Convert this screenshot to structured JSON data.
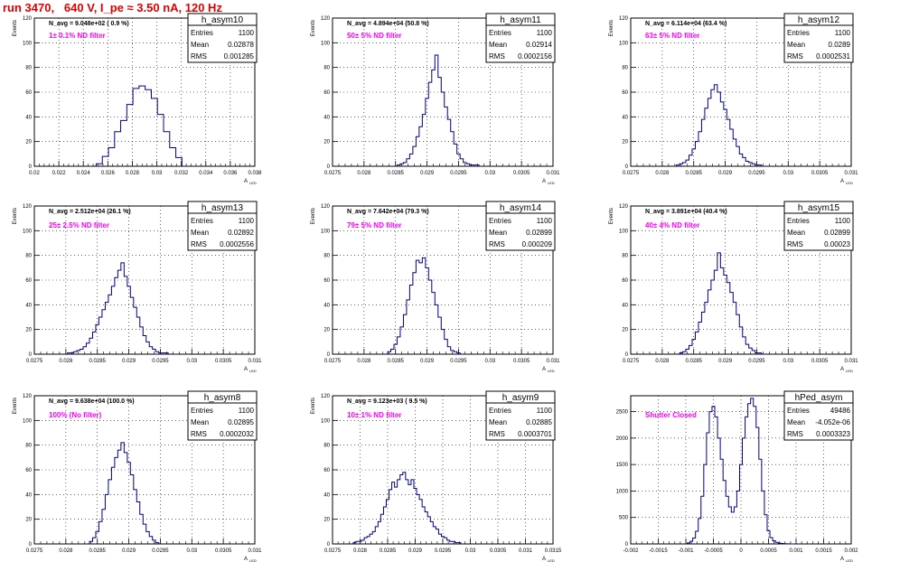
{
  "page_title": "run 3470,   640 V, I_pe ≈ 3.50 nA, 120 Hz",
  "colors": {
    "histogram": "#00008b",
    "annotation": "#ff00ff",
    "title": "#e00000",
    "frame": "#000000"
  },
  "chart_data": [
    {
      "type": "histogram",
      "name": "h_asym10",
      "ylabel": "Events",
      "xlabel": "A_{LED}",
      "xlim": [
        0.02,
        0.038
      ],
      "ylim": [
        0,
        120
      ],
      "xticks": [
        "0.02",
        "0.022",
        "0.024",
        "0.026",
        "0.028",
        "0.03",
        "0.032",
        "0.034",
        "0.036",
        "0.038"
      ],
      "yticks": [
        "0",
        "20",
        "40",
        "60",
        "80",
        "100",
        "120"
      ],
      "stats": {
        "entries": "1100",
        "mean": "0.02878",
        "rms": "0.001285"
      },
      "navg": "N_avg = 9.048e+02 ( 0.9 %)",
      "filter": "1± 0.1% ND filter",
      "grid": true,
      "bin_centers": [
        0.0253,
        0.0258,
        0.0263,
        0.0268,
        0.0273,
        0.0278,
        0.0283,
        0.0288,
        0.0293,
        0.0298,
        0.0303,
        0.0308,
        0.0313,
        0.0318
      ],
      "counts": [
        2,
        8,
        15,
        28,
        37,
        50,
        63,
        65,
        62,
        55,
        42,
        28,
        15,
        7
      ]
    },
    {
      "type": "histogram",
      "name": "h_asym11",
      "ylabel": "Events",
      "xlabel": "A_{LED}",
      "xlim": [
        0.0275,
        0.031
      ],
      "ylim": [
        0,
        120
      ],
      "xticks": [
        "0.0275",
        "0.028",
        "0.0285",
        "0.029",
        "0.0295",
        "0.03",
        "0.0305",
        "0.031"
      ],
      "yticks": [
        "0",
        "20",
        "40",
        "60",
        "80",
        "100",
        "120"
      ],
      "stats": {
        "entries": "1100",
        "mean": "0.02914",
        "rms": "0.0002156"
      },
      "navg": "N_avg = 4.894e+04 (50.8 %)",
      "filter": "50± 5% ND filter",
      "grid": true,
      "bin_centers": [
        0.02855,
        0.0286,
        0.02865,
        0.0287,
        0.02875,
        0.0288,
        0.02885,
        0.0289,
        0.02895,
        0.029,
        0.02905,
        0.0291,
        0.02915,
        0.0292,
        0.02925,
        0.0293,
        0.02935,
        0.0294,
        0.02945,
        0.0295,
        0.02955,
        0.0296,
        0.02965,
        0.0297,
        0.02975,
        0.0298
      ],
      "counts": [
        1,
        2,
        3,
        6,
        10,
        16,
        24,
        32,
        42,
        55,
        68,
        78,
        90,
        72,
        60,
        48,
        38,
        28,
        18,
        10,
        6,
        3,
        2,
        1,
        1,
        1
      ]
    },
    {
      "type": "histogram",
      "name": "h_asym12",
      "ylabel": "Events",
      "xlabel": "A_{LED}",
      "xlim": [
        0.0275,
        0.031
      ],
      "ylim": [
        0,
        120
      ],
      "xticks": [
        "0.0275",
        "0.028",
        "0.0285",
        "0.029",
        "0.0295",
        "0.03",
        "0.0305",
        "0.031"
      ],
      "yticks": [
        "0",
        "20",
        "40",
        "60",
        "80",
        "100",
        "120"
      ],
      "stats": {
        "entries": "1100",
        "mean": "0.0289",
        "rms": "0.0002531"
      },
      "navg": "N_avg = 6.114e+04 (63.4 %)",
      "filter": "63± 5% ND filter",
      "grid": true,
      "bin_centers": [
        0.02825,
        0.0283,
        0.02835,
        0.0284,
        0.02845,
        0.0285,
        0.02855,
        0.0286,
        0.02865,
        0.0287,
        0.02875,
        0.0288,
        0.02885,
        0.0289,
        0.02895,
        0.029,
        0.02905,
        0.0291,
        0.02915,
        0.0292,
        0.02925,
        0.0293,
        0.02935,
        0.0294,
        0.02945,
        0.0295,
        0.02955
      ],
      "counts": [
        1,
        2,
        3,
        5,
        9,
        14,
        20,
        28,
        38,
        47,
        55,
        62,
        66,
        60,
        52,
        46,
        38,
        30,
        22,
        16,
        10,
        7,
        4,
        3,
        2,
        1,
        1
      ]
    },
    {
      "type": "histogram",
      "name": "h_asym13",
      "ylabel": "Events",
      "xlabel": "A_{LED}",
      "xlim": [
        0.0275,
        0.031
      ],
      "ylim": [
        0,
        120
      ],
      "xticks": [
        "0.0275",
        "0.028",
        "0.0285",
        "0.029",
        "0.0295",
        "0.03",
        "0.0305",
        "0.031"
      ],
      "yticks": [
        "0",
        "20",
        "40",
        "60",
        "80",
        "100",
        "120"
      ],
      "stats": {
        "entries": "1100",
        "mean": "0.02892",
        "rms": "0.0002556"
      },
      "navg": "N_avg = 2.512e+04 (26.1 %)",
      "filter": "25± 2.5% ND filter",
      "grid": true,
      "bin_centers": [
        0.02805,
        0.0281,
        0.02815,
        0.0282,
        0.02825,
        0.0283,
        0.02835,
        0.0284,
        0.02845,
        0.0285,
        0.02855,
        0.0286,
        0.02865,
        0.0287,
        0.02875,
        0.0288,
        0.02885,
        0.0289,
        0.02895,
        0.029,
        0.02905,
        0.0291,
        0.02915,
        0.0292,
        0.02925,
        0.0293,
        0.02935,
        0.0294,
        0.02945,
        0.0295,
        0.02955,
        0.0296
      ],
      "counts": [
        1,
        1,
        2,
        3,
        4,
        6,
        9,
        13,
        18,
        24,
        30,
        36,
        42,
        48,
        55,
        62,
        68,
        74,
        63,
        55,
        46,
        38,
        30,
        22,
        15,
        10,
        6,
        4,
        2,
        1,
        1,
        1
      ]
    },
    {
      "type": "histogram",
      "name": "h_asym14",
      "ylabel": "Events",
      "xlabel": "A_{LED}",
      "xlim": [
        0.0275,
        0.031
      ],
      "ylim": [
        0,
        120
      ],
      "xticks": [
        "0.0275",
        "0.028",
        "0.0285",
        "0.029",
        "0.0295",
        "0.03",
        "0.0305",
        "0.031"
      ],
      "yticks": [
        "0",
        "20",
        "40",
        "60",
        "80",
        "100",
        "120"
      ],
      "stats": {
        "entries": "1100",
        "mean": "0.02899",
        "rms": "0.000209"
      },
      "navg": "N_avg = 7.642e+04 (79.3 %)",
      "filter": "79± 5% ND filter",
      "grid": true,
      "bin_centers": [
        0.0284,
        0.02845,
        0.0285,
        0.02855,
        0.0286,
        0.02865,
        0.0287,
        0.02875,
        0.0288,
        0.02885,
        0.0289,
        0.02895,
        0.029,
        0.02905,
        0.0291,
        0.02915,
        0.0292,
        0.02925,
        0.0293,
        0.02935,
        0.0294,
        0.02945,
        0.0295
      ],
      "counts": [
        2,
        4,
        8,
        14,
        22,
        32,
        44,
        56,
        66,
        76,
        74,
        78,
        70,
        60,
        50,
        40,
        30,
        20,
        12,
        6,
        3,
        2,
        1
      ]
    },
    {
      "type": "histogram",
      "name": "h_asym15",
      "ylabel": "Events",
      "xlabel": "A_{LED}",
      "xlim": [
        0.0275,
        0.031
      ],
      "ylim": [
        0,
        120
      ],
      "xticks": [
        "0.0275",
        "0.028",
        "0.0285",
        "0.029",
        "0.0295",
        "0.03",
        "0.0305",
        "0.031"
      ],
      "yticks": [
        "0",
        "20",
        "40",
        "60",
        "80",
        "100",
        "120"
      ],
      "stats": {
        "entries": "1100",
        "mean": "0.02899",
        "rms": "0.00023"
      },
      "navg": "N_avg = 3.891e+04 (40.4 %)",
      "filter": "40± 4% ND filter",
      "grid": true,
      "bin_centers": [
        0.0283,
        0.02835,
        0.0284,
        0.02845,
        0.0285,
        0.02855,
        0.0286,
        0.02865,
        0.0287,
        0.02875,
        0.0288,
        0.02885,
        0.0289,
        0.02895,
        0.029,
        0.02905,
        0.0291,
        0.02915,
        0.0292,
        0.02925,
        0.0293,
        0.02935,
        0.0294,
        0.02945,
        0.0295,
        0.02955
      ],
      "counts": [
        1,
        2,
        4,
        7,
        12,
        18,
        26,
        34,
        42,
        52,
        60,
        68,
        82,
        70,
        64,
        58,
        50,
        42,
        32,
        22,
        14,
        8,
        5,
        3,
        1,
        1
      ]
    },
    {
      "type": "histogram",
      "name": "h_asym8",
      "ylabel": "Events",
      "xlabel": "A_{LED}",
      "xlim": [
        0.0275,
        0.031
      ],
      "ylim": [
        0,
        120
      ],
      "xticks": [
        "0.0275",
        "0.028",
        "0.0285",
        "0.029",
        "0.0295",
        "0.03",
        "0.0305",
        "0.031"
      ],
      "yticks": [
        "0",
        "20",
        "40",
        "60",
        "80",
        "100",
        "120"
      ],
      "stats": {
        "entries": "1100",
        "mean": "0.02895",
        "rms": "0.0002032"
      },
      "navg": "N_avg = 9.638e+04 (100.0 %)",
      "filter": "100% (No filter)",
      "grid": true,
      "bin_centers": [
        0.0284,
        0.02845,
        0.0285,
        0.02855,
        0.0286,
        0.02865,
        0.0287,
        0.02875,
        0.0288,
        0.02885,
        0.0289,
        0.02895,
        0.029,
        0.02905,
        0.0291,
        0.02915,
        0.0292,
        0.02925,
        0.0293,
        0.02935,
        0.0294,
        0.02945
      ],
      "counts": [
        2,
        5,
        10,
        18,
        28,
        40,
        52,
        62,
        70,
        76,
        82,
        74,
        66,
        56,
        44,
        34,
        24,
        16,
        10,
        6,
        3,
        1
      ]
    },
    {
      "type": "histogram",
      "name": "h_asym9",
      "ylabel": "Events",
      "xlabel": "A_{LED}",
      "xlim": [
        0.0275,
        0.0315
      ],
      "ylim": [
        0,
        120
      ],
      "xticks": [
        "0.0275",
        "0.028",
        "0.0285",
        "0.029",
        "0.0295",
        "0.03",
        "0.0305",
        "0.031",
        "0.0315"
      ],
      "yticks": [
        "0",
        "20",
        "40",
        "60",
        "80",
        "100",
        "120"
      ],
      "stats": {
        "entries": "1100",
        "mean": "0.02885",
        "rms": "0.0003701"
      },
      "navg": "N_avg = 9.123e+03 ( 9.5 %)",
      "filter": "10± 1% ND filter",
      "grid": true,
      "bin_centers": [
        0.0279,
        0.02795,
        0.028,
        0.02805,
        0.0281,
        0.02815,
        0.0282,
        0.02825,
        0.0283,
        0.02835,
        0.0284,
        0.02845,
        0.0285,
        0.02855,
        0.0286,
        0.02865,
        0.0287,
        0.02875,
        0.0288,
        0.02885,
        0.0289,
        0.02895,
        0.029,
        0.02905,
        0.0291,
        0.02915,
        0.0292,
        0.02925,
        0.0293,
        0.02935,
        0.0294,
        0.02945,
        0.0295,
        0.02955,
        0.0296,
        0.02965,
        0.0297,
        0.02975,
        0.0298
      ],
      "counts": [
        1,
        2,
        2,
        3,
        5,
        6,
        8,
        10,
        14,
        18,
        24,
        30,
        36,
        44,
        50,
        46,
        52,
        56,
        58,
        52,
        48,
        52,
        45,
        40,
        36,
        30,
        26,
        22,
        18,
        14,
        12,
        8,
        6,
        5,
        3,
        2,
        2,
        1,
        1
      ]
    },
    {
      "type": "histogram",
      "name": "hPed_asym",
      "ylabel": "",
      "xlabel": "A_{LED}",
      "xlim": [
        -0.002,
        0.002
      ],
      "ylim": [
        0,
        2800
      ],
      "xticks": [
        "-0.002",
        "-0.0015",
        "-0.001",
        "-0.0005",
        "0",
        "0.0005",
        "0.001",
        "0.0015",
        "0.002"
      ],
      "yticks": [
        "0",
        "500",
        "1000",
        "1500",
        "2000",
        "2500"
      ],
      "stats": {
        "entries": "49486",
        "mean": "-4.052e-06",
        "rms": "0.0003323"
      },
      "navg": "",
      "filter": "Shutter Closed",
      "grid": true,
      "bin_centers": [
        -0.00095,
        -0.0009,
        -0.00085,
        -0.0008,
        -0.00075,
        -0.0007,
        -0.00065,
        -0.0006,
        -0.00055,
        -0.0005,
        -0.00045,
        -0.0004,
        -0.00035,
        -0.0003,
        -0.00025,
        -0.0002,
        -0.00015,
        -0.0001,
        -5e-05,
        0,
        5e-05,
        0.0001,
        0.00015,
        0.0002,
        0.00025,
        0.0003,
        0.00035,
        0.0004,
        0.00045,
        0.0005,
        0.00055,
        0.0006,
        0.00065,
        0.0007,
        0.00075,
        0.0008,
        0.00085,
        0.0009,
        0.00095
      ],
      "counts": [
        20,
        50,
        110,
        240,
        480,
        900,
        1500,
        2100,
        2500,
        2600,
        2400,
        2000,
        1600,
        1200,
        900,
        700,
        600,
        700,
        1000,
        1500,
        2000,
        2400,
        2650,
        2750,
        2600,
        2200,
        1600,
        1000,
        550,
        250,
        120,
        60,
        30,
        15,
        8,
        4,
        2,
        1,
        1
      ]
    }
  ]
}
